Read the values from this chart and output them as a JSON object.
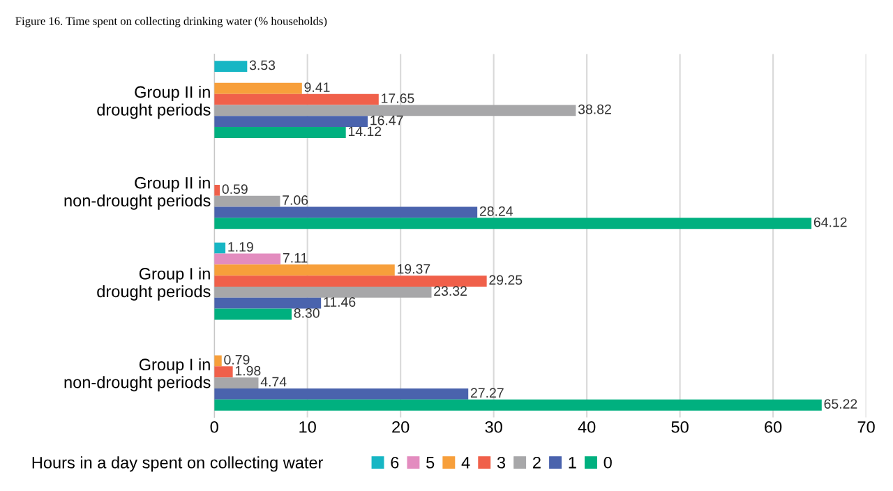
{
  "chart_data": {
    "type": "bar",
    "orientation": "horizontal",
    "title": "Figure 16. Time spent on collecting drinking water (% households)",
    "categories": [
      "Group II in\ndrought periods",
      "Group II in\nnon-drought periods",
      "Group I in\ndrought periods",
      "Group I in\nnon-drought periods"
    ],
    "series": [
      {
        "name": "6",
        "color": "#17b6c4",
        "values": [
          3.53,
          null,
          1.19,
          null
        ],
        "value_labels": [
          "3.53",
          null,
          "1.19",
          null
        ]
      },
      {
        "name": "5",
        "color": "#e38cbf",
        "values": [
          null,
          null,
          7.11,
          null
        ],
        "value_labels": [
          null,
          null,
          "7.11",
          null
        ]
      },
      {
        "name": "4",
        "color": "#f79f3b",
        "values": [
          9.41,
          null,
          19.37,
          0.79
        ],
        "value_labels": [
          "9.41",
          null,
          "19.37",
          "0.79"
        ]
      },
      {
        "name": "3",
        "color": "#f0604a",
        "values": [
          17.65,
          0.59,
          29.25,
          1.98
        ],
        "value_labels": [
          "17.65",
          "0.59",
          "29.25",
          "1.98"
        ]
      },
      {
        "name": "2",
        "color": "#a7a7a9",
        "values": [
          38.82,
          7.06,
          23.32,
          4.74
        ],
        "value_labels": [
          "38.82",
          "7.06",
          "23.32",
          "4.74"
        ]
      },
      {
        "name": "1",
        "color": "#4a63ad",
        "values": [
          16.47,
          28.24,
          11.46,
          27.27
        ],
        "value_labels": [
          "16.47",
          "28.24",
          "11.46",
          "27.27"
        ]
      },
      {
        "name": "0",
        "color": "#00b07f",
        "values": [
          14.12,
          64.12,
          8.3,
          65.22
        ],
        "value_labels": [
          "14.12",
          "64.12",
          "8.30",
          "65.22"
        ]
      }
    ],
    "legend_title": "Hours in a day spent on collecting water",
    "legend": "bottom",
    "xlim": [
      0,
      70
    ],
    "xticks": [
      0,
      10,
      20,
      30,
      40,
      50,
      60,
      70
    ],
    "grid": "x"
  }
}
